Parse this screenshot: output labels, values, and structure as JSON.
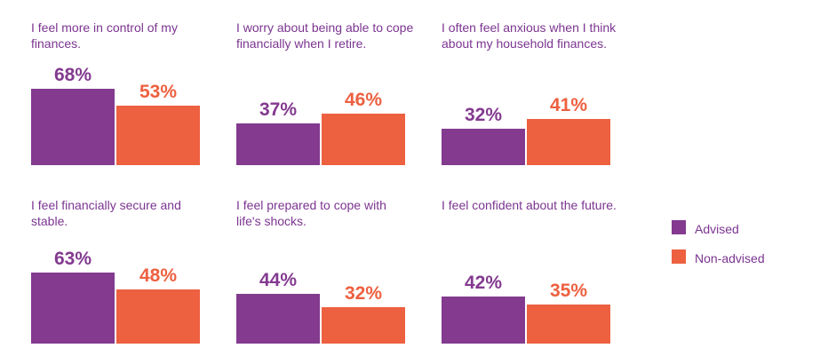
{
  "colors": {
    "advised": "#833a8f",
    "non_advised": "#ed6040",
    "title": "#7b3590"
  },
  "legend": [
    {
      "label": "Advised",
      "color": "#833a8f"
    },
    {
      "label": "Non-advised",
      "color": "#ed6040"
    }
  ],
  "chart_data": [
    {
      "type": "bar",
      "title": "I feel more in control of my finances.",
      "categories": [
        "Advised",
        "Non-advised"
      ],
      "values": [
        68,
        53
      ],
      "value_labels": [
        "68%",
        "53%"
      ]
    },
    {
      "type": "bar",
      "title": "I worry about being able to cope financially when I retire.",
      "categories": [
        "Advised",
        "Non-advised"
      ],
      "values": [
        37,
        46
      ],
      "value_labels": [
        "37%",
        "46%"
      ]
    },
    {
      "type": "bar",
      "title": "I often feel anxious when I think about my household finances.",
      "categories": [
        "Advised",
        "Non-advised"
      ],
      "values": [
        32,
        41
      ],
      "value_labels": [
        "32%",
        "41%"
      ]
    },
    {
      "type": "bar",
      "title": "I feel financially secure and stable.",
      "categories": [
        "Advised",
        "Non-advised"
      ],
      "values": [
        63,
        48
      ],
      "value_labels": [
        "63%",
        "48%"
      ]
    },
    {
      "type": "bar",
      "title": "I feel prepared to cope with life's shocks.",
      "categories": [
        "Advised",
        "Non-advised"
      ],
      "values": [
        44,
        32
      ],
      "value_labels": [
        "44%",
        "32%"
      ]
    },
    {
      "type": "bar",
      "title": "I feel confident about the future.",
      "categories": [
        "Advised",
        "Non-advised"
      ],
      "values": [
        42,
        35
      ],
      "value_labels": [
        "42%",
        "35%"
      ]
    }
  ]
}
